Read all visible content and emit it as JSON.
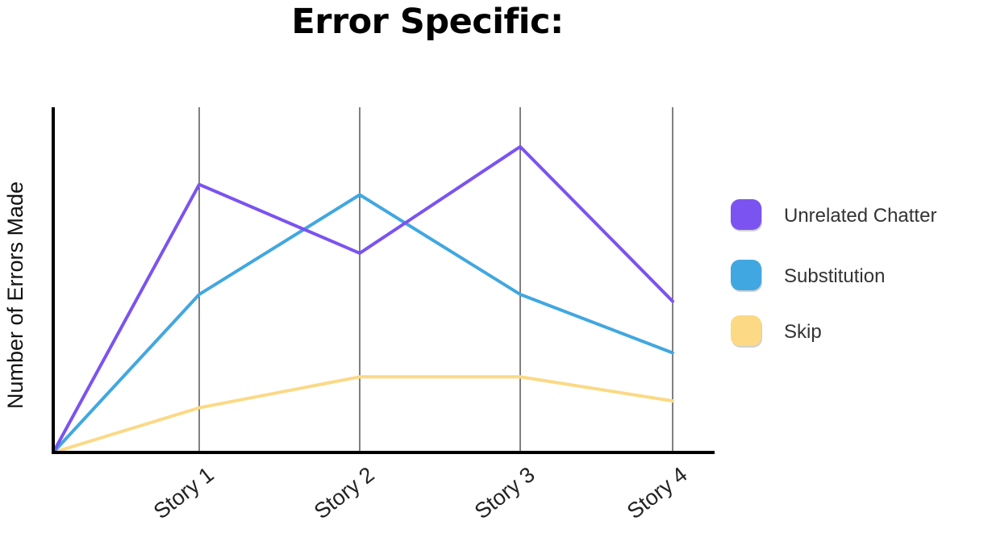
{
  "chart_data": {
    "type": "line",
    "title": "Error Specific:",
    "xlabel": "",
    "ylabel": "Number of Errors Made",
    "categories": [
      "",
      "Story 1",
      "Story 2",
      "Story 3",
      "Story 4"
    ],
    "series": [
      {
        "name": "Unrelated Chatter",
        "color": "#7b53f0",
        "values": [
          0,
          7.8,
          5.8,
          8.9,
          4.4
        ]
      },
      {
        "name": "Substitution",
        "color": "#41a7e0",
        "values": [
          0,
          4.6,
          7.5,
          4.6,
          2.9
        ]
      },
      {
        "name": "Skip",
        "color": "#fbd985",
        "values": [
          0,
          1.3,
          2.2,
          2.2,
          1.5
        ]
      }
    ],
    "ylim": [
      0,
      10
    ],
    "grid": "vertical",
    "legend": "right"
  }
}
